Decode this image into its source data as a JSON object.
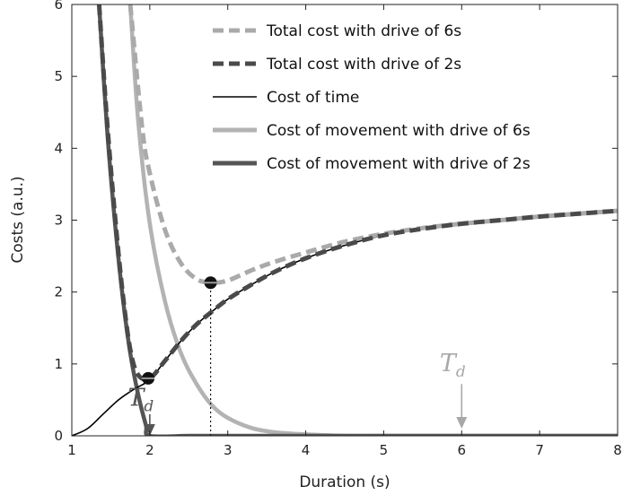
{
  "chart_data": {
    "type": "line",
    "xlabel": "Duration (s)",
    "ylabel": "Costs (a.u.)",
    "xlim": [
      1,
      8
    ],
    "ylim": [
      0,
      6
    ],
    "xticks": [
      "1",
      "2",
      "3",
      "4",
      "5",
      "6",
      "7",
      "8"
    ],
    "yticks": [
      "0",
      "1",
      "2",
      "3",
      "4",
      "5",
      "6"
    ],
    "grid": false,
    "legend_position": "top-right",
    "series": [
      {
        "name": "Total cost with drive of 6s",
        "color": "#aaaaaa",
        "style": "dashed",
        "x": [
          1.75,
          1.9,
          2.0,
          2.2,
          2.4,
          2.6,
          2.8,
          3.0,
          3.3,
          3.6,
          4.0,
          4.5,
          5.0,
          5.5,
          6.0,
          6.5,
          7.0,
          7.5,
          8.0
        ],
        "y": [
          6.0,
          4.3,
          3.65,
          2.85,
          2.4,
          2.18,
          2.13,
          2.16,
          2.3,
          2.42,
          2.55,
          2.7,
          2.81,
          2.89,
          2.95,
          3.0,
          3.05,
          3.09,
          3.13
        ]
      },
      {
        "name": "Total cost with drive of 2s",
        "color": "#4a4a4a",
        "style": "dashed",
        "x": [
          1.35,
          1.45,
          1.55,
          1.65,
          1.75,
          1.85,
          2.0,
          2.2,
          2.4,
          2.6,
          2.8,
          3.0,
          3.3,
          3.6,
          4.0,
          4.5,
          5.0,
          5.5,
          6.0,
          6.5,
          7.0,
          7.5,
          8.0
        ],
        "y": [
          6.0,
          4.4,
          3.1,
          2.0,
          1.2,
          0.85,
          0.8,
          1.05,
          1.32,
          1.55,
          1.73,
          1.9,
          2.1,
          2.28,
          2.47,
          2.65,
          2.79,
          2.88,
          2.95,
          3.0,
          3.05,
          3.09,
          3.13
        ]
      },
      {
        "name": "Cost of time",
        "color": "#000000",
        "style": "solid",
        "x": [
          1.0,
          1.2,
          1.4,
          1.6,
          1.8,
          2.0,
          2.2,
          2.4,
          2.6,
          2.8,
          3.0,
          3.3,
          3.6,
          4.0,
          4.5,
          5.0,
          5.5,
          6.0,
          6.5,
          7.0,
          7.5,
          8.0
        ],
        "y": [
          0.0,
          0.1,
          0.3,
          0.5,
          0.65,
          0.78,
          1.05,
          1.32,
          1.55,
          1.73,
          1.9,
          2.1,
          2.28,
          2.47,
          2.65,
          2.79,
          2.88,
          2.95,
          3.0,
          3.05,
          3.09,
          3.13
        ]
      },
      {
        "name": "Cost of movement with drive of 6s",
        "color": "#b3b3b3",
        "style": "solid",
        "x": [
          1.75,
          1.85,
          2.0,
          2.2,
          2.4,
          2.6,
          2.8,
          3.0,
          3.3,
          3.6,
          4.0,
          4.5,
          5.0,
          6.0,
          8.0
        ],
        "y": [
          6.0,
          4.4,
          2.95,
          1.85,
          1.15,
          0.72,
          0.42,
          0.25,
          0.11,
          0.05,
          0.02,
          0.0,
          0.0,
          0.0,
          0.0
        ]
      },
      {
        "name": "Cost of movement with drive of 2s",
        "color": "#555555",
        "style": "solid",
        "x": [
          1.35,
          1.45,
          1.55,
          1.65,
          1.75,
          1.85,
          1.95,
          2.0,
          2.5,
          3.0,
          4.0,
          6.0,
          8.0
        ],
        "y": [
          6.0,
          4.3,
          3.0,
          1.95,
          1.15,
          0.58,
          0.15,
          0.0,
          0.0,
          0.0,
          0.0,
          0.0,
          0.0
        ]
      }
    ],
    "markers": [
      {
        "x": 1.98,
        "y": 0.8,
        "series": "Total cost with drive of 2s"
      },
      {
        "x": 2.78,
        "y": 2.13,
        "series": "Total cost with drive of 6s"
      }
    ],
    "vline": {
      "x": 2.78,
      "from": 0,
      "to": 2.13,
      "style": "dotted"
    },
    "annotations": [
      {
        "main": "T",
        "sub": "d",
        "x": 2.0,
        "y_text": 0.42,
        "arrow_from": 0.3,
        "arrow_to": 0.0,
        "color": "#555555"
      },
      {
        "main": "T",
        "sub": "d",
        "x": 6.0,
        "y_text": 0.9,
        "arrow_from": 0.72,
        "arrow_to": 0.1,
        "color": "#a8a8a8"
      }
    ]
  }
}
